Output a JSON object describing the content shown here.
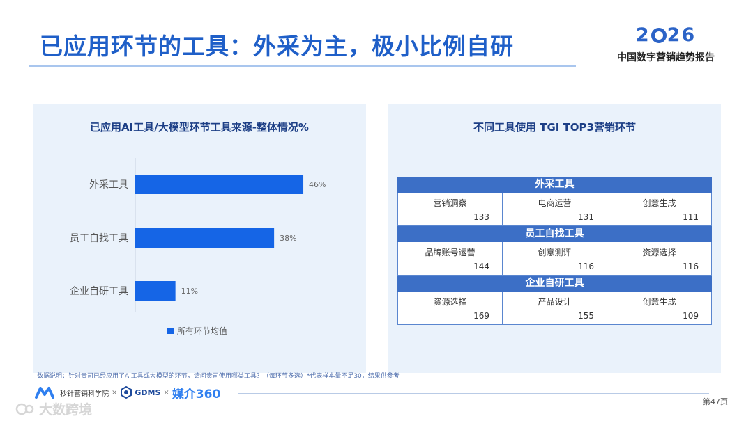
{
  "header": {
    "title": "已应用环节的工具：外采为主，极小比例自研",
    "brand_year_left": "2",
    "brand_year_right": "26",
    "brand_subtitle": "中国数字营销趋势报告"
  },
  "left_panel": {
    "title": "已应用AI工具/大模型环节工具来源-整体情况%"
  },
  "chart_data": {
    "type": "bar",
    "orientation": "horizontal",
    "title": "已应用AI工具/大模型环节工具来源-整体情况%",
    "categories": [
      "外采工具",
      "员工自找工具",
      "企业自研工具"
    ],
    "series": [
      {
        "name": "所有环节均值",
        "values": [
          46,
          38,
          11
        ],
        "color": "#1565e6"
      }
    ],
    "data_labels": [
      "46%",
      "38%",
      "11%"
    ],
    "xlim": [
      0,
      50
    ],
    "grid": false,
    "legend": "bottom"
  },
  "right_panel": {
    "title": "不同工具使用 TGI TOP3营销环节",
    "sections": [
      {
        "header": "外采工具",
        "cells": [
          {
            "name": "营销洞察",
            "value": "133"
          },
          {
            "name": "电商运营",
            "value": "131"
          },
          {
            "name": "创意生成",
            "value": "111"
          }
        ]
      },
      {
        "header": "员工自找工具",
        "cells": [
          {
            "name": "品牌账号运营",
            "value": "144"
          },
          {
            "name": "创意测评",
            "value": "116"
          },
          {
            "name": "资源选择",
            "value": "116"
          }
        ]
      },
      {
        "header": "企业自研工具",
        "cells": [
          {
            "name": "资源选择",
            "value": "169"
          },
          {
            "name": "产品设计",
            "value": "155"
          },
          {
            "name": "创意生成",
            "value": "109"
          }
        ]
      }
    ]
  },
  "footer": {
    "note": "数据说明：针对贵司已经应用了AI工具或大模型的环节，请问贵司使用哪类工具？（每环节多选）*代表样本量不足30，结果供参考",
    "logo1_text": "秒针营销科学院",
    "times_sign": "×",
    "logo2_text": "GDMS",
    "logo3_text": "媒介360",
    "page_number": "第47页",
    "watermark_text": "大数跨境"
  },
  "colors": {
    "accent": "#1f5fc8",
    "bar": "#1565e6",
    "panel_bg": "#eaf2fb",
    "table_header": "#3c6fc6"
  }
}
